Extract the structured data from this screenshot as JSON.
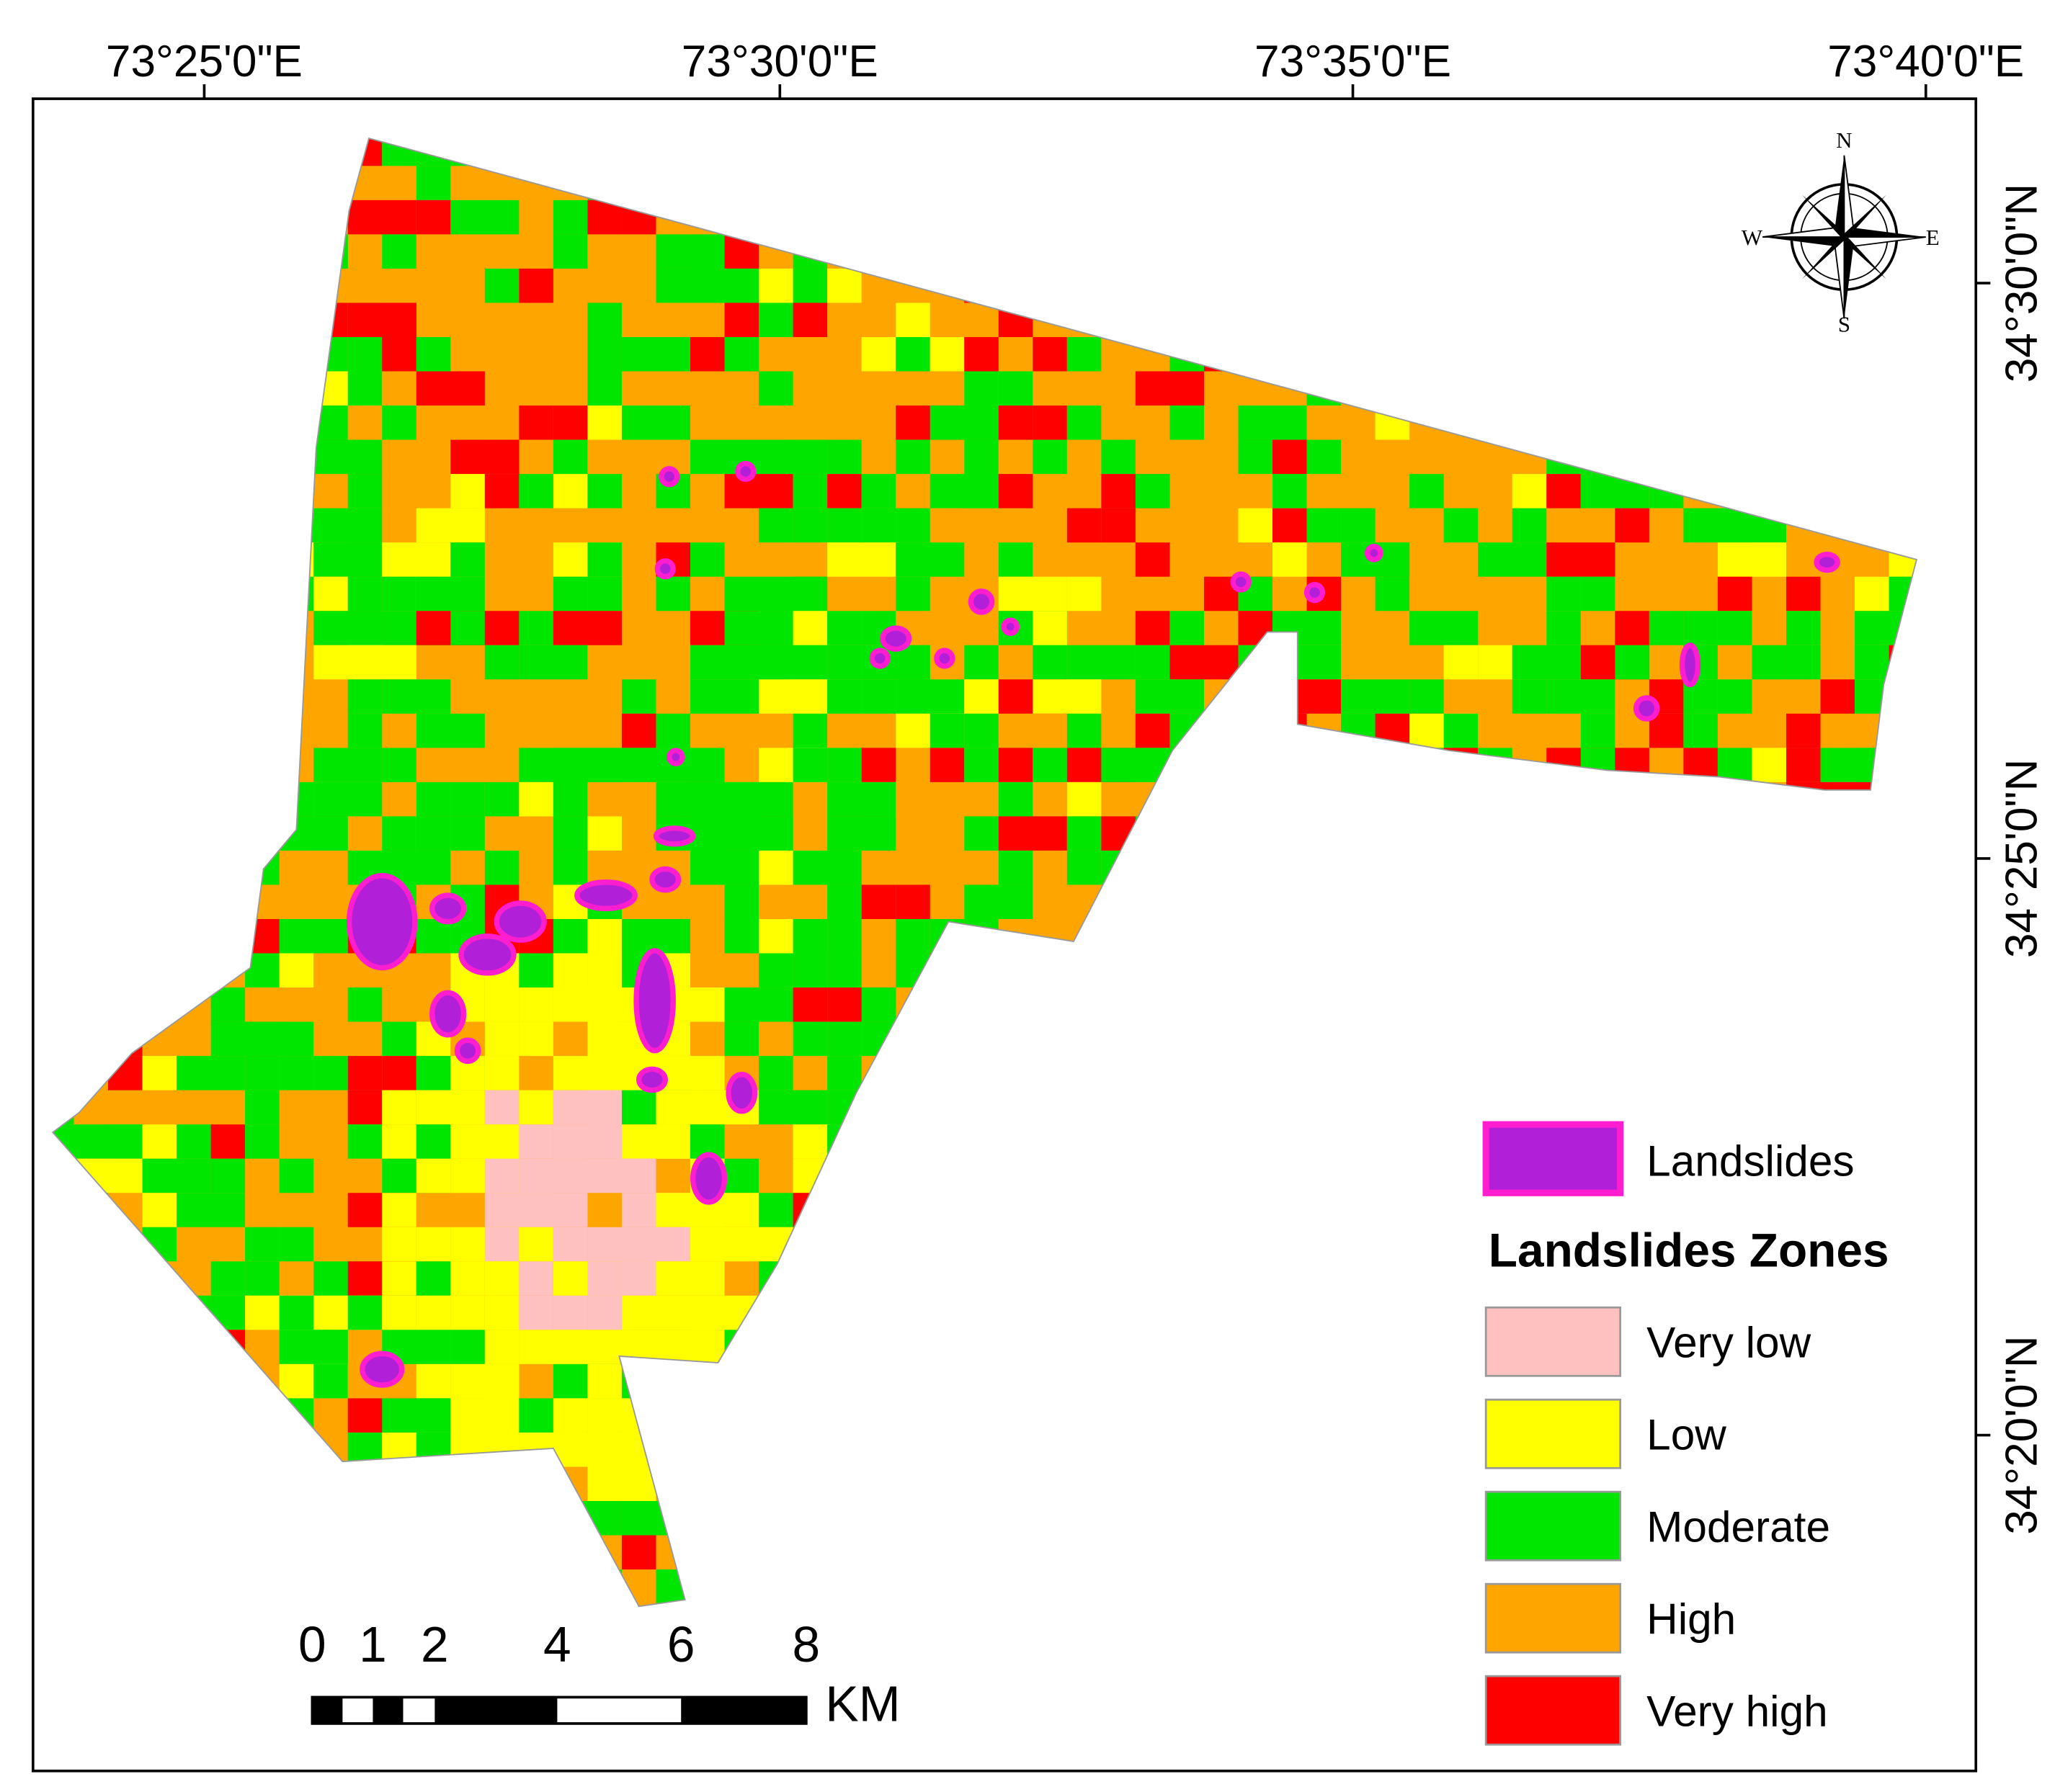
{
  "map": {
    "longitude_labels": [
      "73°25'0\"E",
      "73°30'0\"E",
      "73°35'0\"E",
      "73°40'0\"E"
    ],
    "latitude_labels": [
      "34°30'0\"N",
      "34°25'0\"N",
      "34°20'0\"N"
    ],
    "compass": {
      "n": "N",
      "e": "E",
      "s": "S",
      "w": "W"
    },
    "scale_bar": {
      "labels": [
        "0",
        "1",
        "2",
        "4",
        "6",
        "8"
      ],
      "unit": "KM"
    },
    "legend": {
      "landslides": {
        "label": "Landslides",
        "color": "#ff1ecf",
        "fill": "#b21fd8"
      },
      "title": "Landslides Zones",
      "zones": [
        {
          "label": "Very low",
          "color": "#ffc0c0"
        },
        {
          "label": "Low",
          "color": "#ffff00"
        },
        {
          "label": "Moderate",
          "color": "#00e600"
        },
        {
          "label": "High",
          "color": "#ffa500"
        },
        {
          "label": "Very high",
          "color": "#ff0000"
        }
      ]
    }
  }
}
